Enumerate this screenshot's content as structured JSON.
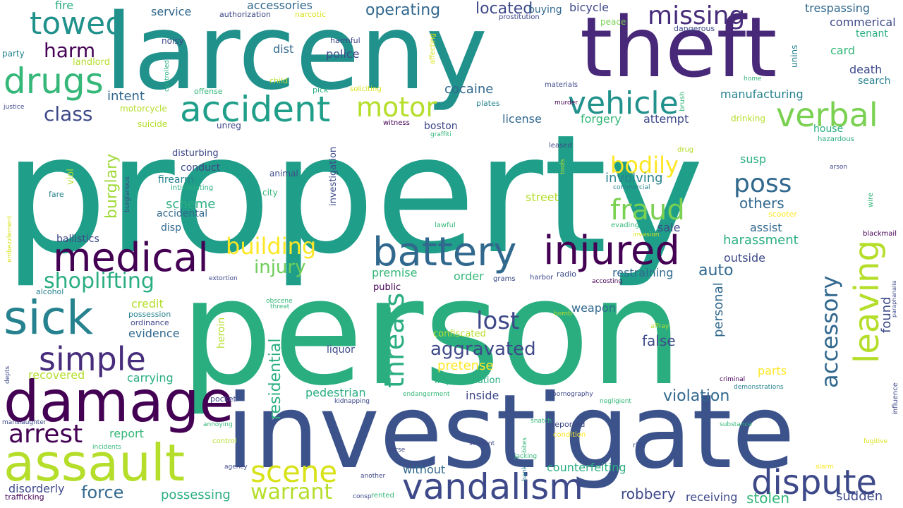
{
  "palette": {
    "dark_purple": "#440154",
    "purple": "#482878",
    "indigo": "#3e4989",
    "blue": "#31688e",
    "teal_blue": "#26828e",
    "teal": "#1f9e89",
    "green": "#35b779",
    "light_green": "#6ece58",
    "lime": "#b5de2b",
    "yellow": "#fde725"
  },
  "words": [
    {
      "text": "property",
      "color": "#1f9e89"
    },
    {
      "text": "person",
      "color": "#2aae80"
    },
    {
      "text": "investigate",
      "color": "#3b528b"
    },
    {
      "text": "larceny",
      "color": "#21918c"
    },
    {
      "text": "theft",
      "color": "#482878"
    },
    {
      "text": "assault",
      "color": "#b5de2b"
    },
    {
      "text": "damage",
      "color": "#440154"
    },
    {
      "text": "vandalism",
      "color": "#3e4989"
    },
    {
      "text": "dispute",
      "color": "#3e4989"
    },
    {
      "text": "accident",
      "color": "#1f9e89"
    },
    {
      "text": "battery",
      "color": "#31688e"
    },
    {
      "text": "injured",
      "color": "#440154"
    },
    {
      "text": "medical",
      "color": "#440154"
    },
    {
      "text": "sick",
      "color": "#26828e"
    },
    {
      "text": "drugs",
      "color": "#35b779"
    },
    {
      "text": "towed",
      "color": "#21918c"
    },
    {
      "text": "verbal",
      "color": "#7ad151"
    },
    {
      "text": "vehicle",
      "color": "#21918c"
    },
    {
      "text": "missing",
      "color": "#472d7b"
    },
    {
      "text": "motor",
      "color": "#b5de2b"
    },
    {
      "text": "fraud",
      "color": "#7ad151"
    },
    {
      "text": "simple",
      "color": "#472d7b"
    },
    {
      "text": "scene",
      "color": "#d8e219"
    },
    {
      "text": "leaving",
      "color": "#b5de2b"
    },
    {
      "text": "arrest",
      "color": "#440154"
    },
    {
      "text": "warrant",
      "color": "#b5de2b"
    },
    {
      "text": "threats",
      "color": "#2aae80"
    },
    {
      "text": "poss",
      "color": "#31688e"
    },
    {
      "text": "building",
      "color": "#fde725"
    },
    {
      "text": "bodily",
      "color": "#fde725"
    },
    {
      "text": "shoplifting",
      "color": "#2aae80"
    },
    {
      "text": "lost",
      "color": "#3e4989"
    },
    {
      "text": "accessory",
      "color": "#31688e"
    },
    {
      "text": "aggravated",
      "color": "#3e4989"
    },
    {
      "text": "harm",
      "color": "#440154"
    },
    {
      "text": "class",
      "color": "#3e4989"
    },
    {
      "text": "injury",
      "color": "#6ece58"
    },
    {
      "text": "residential",
      "color": "#2aae80"
    },
    {
      "text": "burglary",
      "color": "#a0da39"
    },
    {
      "text": "others",
      "color": "#31688e"
    },
    {
      "text": "operating",
      "color": "#31688e"
    },
    {
      "text": "located",
      "color": "#3e4989"
    },
    {
      "text": "force",
      "color": "#31688e"
    },
    {
      "text": "violation",
      "color": "#31688e"
    },
    {
      "text": "robbery",
      "color": "#3e4989"
    },
    {
      "text": "sudden",
      "color": "#3e4989"
    },
    {
      "text": "stolen",
      "color": "#35b779"
    },
    {
      "text": "possessing",
      "color": "#2aae80"
    },
    {
      "text": "false",
      "color": "#3e4989"
    },
    {
      "text": "auto",
      "color": "#31688e"
    },
    {
      "text": "found",
      "color": "#3e4989"
    },
    {
      "text": "personal",
      "color": "#31688e"
    },
    {
      "text": "pretense",
      "color": "#fde725"
    },
    {
      "text": "harassment",
      "color": "#2aae80"
    },
    {
      "text": "cocaine",
      "color": "#31688e"
    },
    {
      "text": "involving",
      "color": "#26828e"
    },
    {
      "text": "scheme",
      "color": "#2aae80"
    },
    {
      "text": "intent",
      "color": "#31688e"
    },
    {
      "text": "credit",
      "color": "#b5de2b"
    },
    {
      "text": "evidence",
      "color": "#31688e"
    },
    {
      "text": "recovered",
      "color": "#b5de2b"
    },
    {
      "text": "carrying",
      "color": "#2aae80"
    },
    {
      "text": "report",
      "color": "#35b779"
    },
    {
      "text": "disorderly",
      "color": "#3e4989"
    },
    {
      "text": "without",
      "color": "#31688e"
    },
    {
      "text": "inside",
      "color": "#3e4989"
    },
    {
      "text": "parts",
      "color": "#fde725"
    },
    {
      "text": "counterfeiting",
      "color": "#2aae80"
    },
    {
      "text": "receiving",
      "color": "#3e4989"
    },
    {
      "text": "pedestrian",
      "color": "#2aae80"
    },
    {
      "text": "restraining",
      "color": "#31688e"
    },
    {
      "text": "outside",
      "color": "#3e4989"
    },
    {
      "text": "assist",
      "color": "#31688e"
    },
    {
      "text": "sale",
      "color": "#3e4989"
    },
    {
      "text": "weapon",
      "color": "#31688e"
    },
    {
      "text": "premise",
      "color": "#35b779"
    },
    {
      "text": "order",
      "color": "#35b779"
    },
    {
      "text": "street",
      "color": "#b5de2b"
    },
    {
      "text": "susp",
      "color": "#2aae80"
    },
    {
      "text": "house",
      "color": "#2aae80"
    },
    {
      "text": "death",
      "color": "#3e4989"
    },
    {
      "text": "card",
      "color": "#35b779"
    },
    {
      "text": "license",
      "color": "#31688e"
    },
    {
      "text": "forgery",
      "color": "#35b779"
    },
    {
      "text": "attempt",
      "color": "#3e4989"
    },
    {
      "text": "manufacturing",
      "color": "#26828e"
    },
    {
      "text": "trespassing",
      "color": "#31688e"
    },
    {
      "text": "commerical",
      "color": "#3e4989"
    },
    {
      "text": "tenant",
      "color": "#2aae80"
    },
    {
      "text": "search",
      "color": "#26828e"
    },
    {
      "text": "dist",
      "color": "#31688e"
    },
    {
      "text": "police",
      "color": "#3e4989"
    },
    {
      "text": "service",
      "color": "#31688e"
    },
    {
      "text": "accessories",
      "color": "#31688e"
    },
    {
      "text": "fire",
      "color": "#2aae80"
    },
    {
      "text": "buying",
      "color": "#31688e"
    },
    {
      "text": "bicycle",
      "color": "#3e4989"
    },
    {
      "text": "boston",
      "color": "#3e4989"
    },
    {
      "text": "conduct",
      "color": "#3e4989"
    },
    {
      "text": "firearm",
      "color": "#26828e"
    },
    {
      "text": "accidental",
      "color": "#31688e"
    },
    {
      "text": "disp",
      "color": "#31688e"
    },
    {
      "text": "ballistics",
      "color": "#3e4989"
    },
    {
      "text": "disturbing",
      "color": "#3e4989"
    },
    {
      "text": "viol",
      "color": "#b5de2b"
    },
    {
      "text": "investigation",
      "color": "#3e4989"
    },
    {
      "text": "liquor",
      "color": "#3e4989"
    },
    {
      "text": "heroin",
      "color": "#b5de2b"
    },
    {
      "text": "impersonation",
      "color": "#2aae80"
    },
    {
      "text": "confiscated",
      "color": "#b5de2b"
    },
    {
      "text": "public",
      "color": "#440154"
    },
    {
      "text": "motorcycle",
      "color": "#b5de2b"
    },
    {
      "text": "suicide",
      "color": "#b5de2b"
    },
    {
      "text": "unreg",
      "color": "#3e4989"
    },
    {
      "text": "plates",
      "color": "#26828e"
    },
    {
      "text": "drinking",
      "color": "#b5de2b"
    },
    {
      "text": "landlord",
      "color": "#b5de2b"
    },
    {
      "text": "noisy",
      "color": "#3e4989"
    },
    {
      "text": "party",
      "color": "#26828e"
    },
    {
      "text": "unins",
      "color": "#26828e"
    },
    {
      "text": "city",
      "color": "#35b779"
    },
    {
      "text": "animal",
      "color": "#3e4989"
    },
    {
      "text": "fare",
      "color": "#26828e"
    },
    {
      "text": "possession",
      "color": "#26828e"
    },
    {
      "text": "ordinance",
      "color": "#3e4989"
    },
    {
      "text": "authorization",
      "color": "#3e4989"
    },
    {
      "text": "narcotic",
      "color": "#d8e219"
    },
    {
      "text": "prostitution",
      "color": "#3e4989"
    },
    {
      "text": "peace",
      "color": "#7ad151"
    },
    {
      "text": "dangerous",
      "color": "#3e4989"
    },
    {
      "text": "harmful",
      "color": "#3e4989"
    },
    {
      "text": "affecting",
      "color": "#d8e219"
    },
    {
      "text": "controlled",
      "color": "#2aae80"
    },
    {
      "text": "child",
      "color": "#b5de2b"
    },
    {
      "text": "offense",
      "color": "#35b779"
    },
    {
      "text": "pick",
      "color": "#2aae80"
    },
    {
      "text": "soliciting",
      "color": "#d8e219"
    },
    {
      "text": "justice",
      "color": "#3e4989"
    },
    {
      "text": "materials",
      "color": "#3e4989"
    },
    {
      "text": "murder",
      "color": "#440154"
    },
    {
      "text": "witness",
      "color": "#440154"
    },
    {
      "text": "graffiti",
      "color": "#35b779"
    },
    {
      "text": "brush",
      "color": "#35b779"
    },
    {
      "text": "home",
      "color": "#35b779"
    },
    {
      "text": "leased",
      "color": "#3e4989"
    },
    {
      "text": "drug",
      "color": "#b5de2b"
    },
    {
      "text": "tools",
      "color": "#b5de2b"
    },
    {
      "text": "arson",
      "color": "#3e4989"
    },
    {
      "text": "hazardous",
      "color": "#2aae80"
    },
    {
      "text": "commercial",
      "color": "#26828e"
    },
    {
      "text": "intimidating",
      "color": "#2aae80"
    },
    {
      "text": "burglarious",
      "color": "#3e4989"
    },
    {
      "text": "lawful",
      "color": "#35b779"
    },
    {
      "text": "evading",
      "color": "#35b779"
    },
    {
      "text": "invasion",
      "color": "#d8e219"
    },
    {
      "text": "scooter",
      "color": "#fde725"
    },
    {
      "text": "wire",
      "color": "#35b779"
    },
    {
      "text": "blackmail",
      "color": "#440154"
    },
    {
      "text": "embezzlement",
      "color": "#d8e219"
    },
    {
      "text": "alcohol",
      "color": "#26828e"
    },
    {
      "text": "extortion",
      "color": "#3e4989"
    },
    {
      "text": "grams",
      "color": "#3e4989"
    },
    {
      "text": "harbor",
      "color": "#3e4989"
    },
    {
      "text": "radio",
      "color": "#3e4989"
    },
    {
      "text": "accosting",
      "color": "#440154"
    },
    {
      "text": "paraphanalia",
      "color": "#3e4989"
    },
    {
      "text": "obscene",
      "color": "#35b779"
    },
    {
      "text": "threat",
      "color": "#35b779"
    },
    {
      "text": "bomb",
      "color": "#b5de2b"
    },
    {
      "text": "affray",
      "color": "#b5de2b"
    },
    {
      "text": "depts",
      "color": "#3e4989"
    },
    {
      "text": "criminal",
      "color": "#440154"
    },
    {
      "text": "demonstrations",
      "color": "#26828e"
    },
    {
      "text": "influence",
      "color": "#3e4989"
    },
    {
      "text": "endangerment",
      "color": "#35b779"
    },
    {
      "text": "pornography",
      "color": "#3e4989"
    },
    {
      "text": "negligient",
      "color": "#35b779"
    },
    {
      "text": "kidnapping",
      "color": "#3e4989"
    },
    {
      "text": "pocket",
      "color": "#3e4989"
    },
    {
      "text": "manslaughter",
      "color": "#3e4989"
    },
    {
      "text": "annoying",
      "color": "#35b779"
    },
    {
      "text": "snatch",
      "color": "#35b779"
    },
    {
      "text": "reported",
      "color": "#3e4989"
    },
    {
      "text": "substance",
      "color": "#35b779"
    },
    {
      "text": "condition",
      "color": "#fde725"
    },
    {
      "text": "control",
      "color": "#b5de2b"
    },
    {
      "text": "incidents",
      "color": "#35b779"
    },
    {
      "text": "purse",
      "color": "#3e4989"
    },
    {
      "text": "incident",
      "color": "#3e4989"
    },
    {
      "text": "bites",
      "color": "#35b779"
    },
    {
      "text": "riot",
      "color": "#3e4989"
    },
    {
      "text": "fugitive",
      "color": "#d8e219"
    },
    {
      "text": "agency",
      "color": "#3e4989"
    },
    {
      "text": "jacking",
      "color": "#35b779"
    },
    {
      "text": "bank",
      "color": "#26828e"
    },
    {
      "text": "alarm",
      "color": "#fde725"
    },
    {
      "text": "another",
      "color": "#3e4989"
    },
    {
      "text": "trafficking",
      "color": "#440154"
    },
    {
      "text": "consp",
      "color": "#3e4989"
    },
    {
      "text": "rented",
      "color": "#35b779"
    }
  ]
}
